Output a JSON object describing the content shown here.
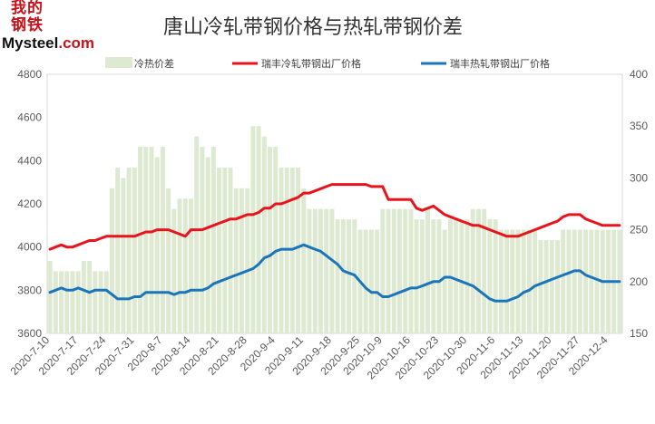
{
  "logo": {
    "hanzi": "我的钢铁",
    "latin_main": "Mysteel",
    "latin_suffix": ".com"
  },
  "chart_data": {
    "type": "line",
    "title": "唐山冷轧带钢价格与热轧带钢价差",
    "xlabel": "",
    "ylabel": "",
    "y_left_lim": [
      3600,
      4800
    ],
    "y_left_ticks": [
      3600,
      3800,
      4000,
      4200,
      4400,
      4600,
      4800
    ],
    "y_right_lim": [
      150,
      400
    ],
    "y_right_ticks": [
      150,
      200,
      250,
      300,
      350,
      400
    ],
    "grid": false,
    "legend_position": "top",
    "x_tick_labels": [
      "2020-7-10",
      "2020-7-17",
      "2020-7-24",
      "2020-7-31",
      "2020-8-7",
      "2020-8-14",
      "2020-8-21",
      "2020-8-28",
      "2020-9-4",
      "2020-9-11",
      "2020-9-18",
      "2020-9-25",
      "2020-10-2",
      "2020-10-9",
      "2020-10-16",
      "2020-10-23",
      "2020-10-30",
      "2020-11-6",
      "2020-11-13",
      "2020-11-20",
      "2020-11-27",
      "2020-12-4"
    ],
    "x": [
      "2020-7-10",
      "2020-7-13",
      "2020-7-14",
      "2020-7-15",
      "2020-7-16",
      "2020-7-17",
      "2020-7-20",
      "2020-7-21",
      "2020-7-22",
      "2020-7-23",
      "2020-7-24",
      "2020-7-27",
      "2020-7-28",
      "2020-7-29",
      "2020-7-30",
      "2020-7-31",
      "2020-8-3",
      "2020-8-4",
      "2020-8-5",
      "2020-8-6",
      "2020-8-7",
      "2020-8-10",
      "2020-8-11",
      "2020-8-12",
      "2020-8-13",
      "2020-8-14",
      "2020-8-17",
      "2020-8-18",
      "2020-8-19",
      "2020-8-20",
      "2020-8-21",
      "2020-8-24",
      "2020-8-25",
      "2020-8-26",
      "2020-8-27",
      "2020-8-28",
      "2020-8-31",
      "2020-9-1",
      "2020-9-2",
      "2020-9-3",
      "2020-9-4",
      "2020-9-7",
      "2020-9-8",
      "2020-9-9",
      "2020-9-10",
      "2020-9-11",
      "2020-9-14",
      "2020-9-15",
      "2020-9-16",
      "2020-9-17",
      "2020-9-18",
      "2020-9-21",
      "2020-9-22",
      "2020-9-23",
      "2020-9-24",
      "2020-9-25",
      "2020-9-28",
      "2020-9-29",
      "2020-9-30",
      "2020-10-9",
      "2020-10-12",
      "2020-10-13",
      "2020-10-14",
      "2020-10-15",
      "2020-10-16",
      "2020-10-19",
      "2020-10-20",
      "2020-10-21",
      "2020-10-22",
      "2020-10-23",
      "2020-10-26",
      "2020-10-27",
      "2020-10-28",
      "2020-10-29",
      "2020-10-30",
      "2020-11-2",
      "2020-11-3",
      "2020-11-4",
      "2020-11-5",
      "2020-11-6",
      "2020-11-9",
      "2020-11-10",
      "2020-11-11",
      "2020-11-12",
      "2020-11-13",
      "2020-11-16",
      "2020-11-17",
      "2020-11-18",
      "2020-11-19",
      "2020-11-20",
      "2020-11-23",
      "2020-11-24",
      "2020-11-25",
      "2020-11-26",
      "2020-11-27",
      "2020-11-30",
      "2020-12-1",
      "2020-12-2",
      "2020-12-3",
      "2020-12-4",
      "2020-12-7",
      "2020-12-8"
    ],
    "series": [
      {
        "name": "冷热价差",
        "type": "bar",
        "axis": "right",
        "color": "#dde9d0",
        "values": [
          220,
          210,
          210,
          210,
          210,
          210,
          220,
          220,
          210,
          210,
          210,
          290,
          310,
          300,
          310,
          310,
          330,
          330,
          330,
          320,
          330,
          290,
          270,
          280,
          280,
          280,
          340,
          330,
          320,
          330,
          310,
          310,
          310,
          290,
          290,
          290,
          350,
          350,
          340,
          330,
          330,
          310,
          310,
          310,
          310,
          290,
          270,
          270,
          270,
          270,
          270,
          260,
          260,
          260,
          260,
          250,
          250,
          250,
          250,
          270,
          270,
          270,
          270,
          270,
          270,
          260,
          260,
          270,
          260,
          260,
          250,
          260,
          260,
          260,
          260,
          270,
          270,
          270,
          260,
          260,
          250,
          250,
          250,
          250,
          250,
          250,
          250,
          240,
          240,
          240,
          240,
          250,
          250,
          250,
          250,
          250,
          250,
          250,
          250,
          250,
          250,
          250
        ]
      },
      {
        "name": "瑞丰冷轧带钢出厂价格",
        "type": "line",
        "axis": "left",
        "color": "#e8141c",
        "values": [
          3990,
          4000,
          4010,
          4000,
          4000,
          4010,
          4020,
          4030,
          4030,
          4040,
          4050,
          4050,
          4050,
          4050,
          4050,
          4050,
          4060,
          4070,
          4070,
          4080,
          4080,
          4080,
          4070,
          4060,
          4050,
          4080,
          4080,
          4080,
          4090,
          4100,
          4110,
          4120,
          4130,
          4130,
          4140,
          4150,
          4150,
          4160,
          4180,
          4180,
          4200,
          4200,
          4210,
          4220,
          4230,
          4250,
          4250,
          4260,
          4270,
          4280,
          4290,
          4290,
          4290,
          4290,
          4290,
          4290,
          4290,
          4280,
          4280,
          4280,
          4220,
          4220,
          4220,
          4220,
          4220,
          4180,
          4170,
          4180,
          4190,
          4170,
          4150,
          4140,
          4130,
          4120,
          4110,
          4100,
          4100,
          4090,
          4080,
          4070,
          4060,
          4050,
          4050,
          4050,
          4060,
          4070,
          4080,
          4090,
          4100,
          4110,
          4120,
          4140,
          4150,
          4150,
          4150,
          4130,
          4120,
          4110,
          4100,
          4100,
          4100,
          4100
        ]
      },
      {
        "name": "瑞丰热轧带钢出厂价格",
        "type": "line",
        "axis": "left",
        "color": "#1a75bb",
        "values": [
          3790,
          3800,
          3810,
          3800,
          3800,
          3810,
          3800,
          3790,
          3800,
          3800,
          3800,
          3780,
          3760,
          3760,
          3760,
          3770,
          3770,
          3790,
          3790,
          3790,
          3790,
          3790,
          3780,
          3790,
          3790,
          3800,
          3800,
          3800,
          3810,
          3830,
          3840,
          3850,
          3860,
          3870,
          3880,
          3890,
          3900,
          3920,
          3950,
          3960,
          3980,
          3990,
          3990,
          3990,
          4000,
          4010,
          4000,
          3990,
          3980,
          3960,
          3940,
          3920,
          3890,
          3880,
          3870,
          3840,
          3810,
          3790,
          3790,
          3770,
          3770,
          3780,
          3790,
          3800,
          3810,
          3810,
          3820,
          3830,
          3840,
          3840,
          3860,
          3860,
          3850,
          3840,
          3830,
          3820,
          3800,
          3780,
          3760,
          3750,
          3750,
          3750,
          3760,
          3770,
          3790,
          3800,
          3820,
          3830,
          3840,
          3850,
          3860,
          3870,
          3880,
          3890,
          3890,
          3870,
          3860,
          3850,
          3840,
          3840,
          3840,
          3840
        ]
      }
    ]
  }
}
